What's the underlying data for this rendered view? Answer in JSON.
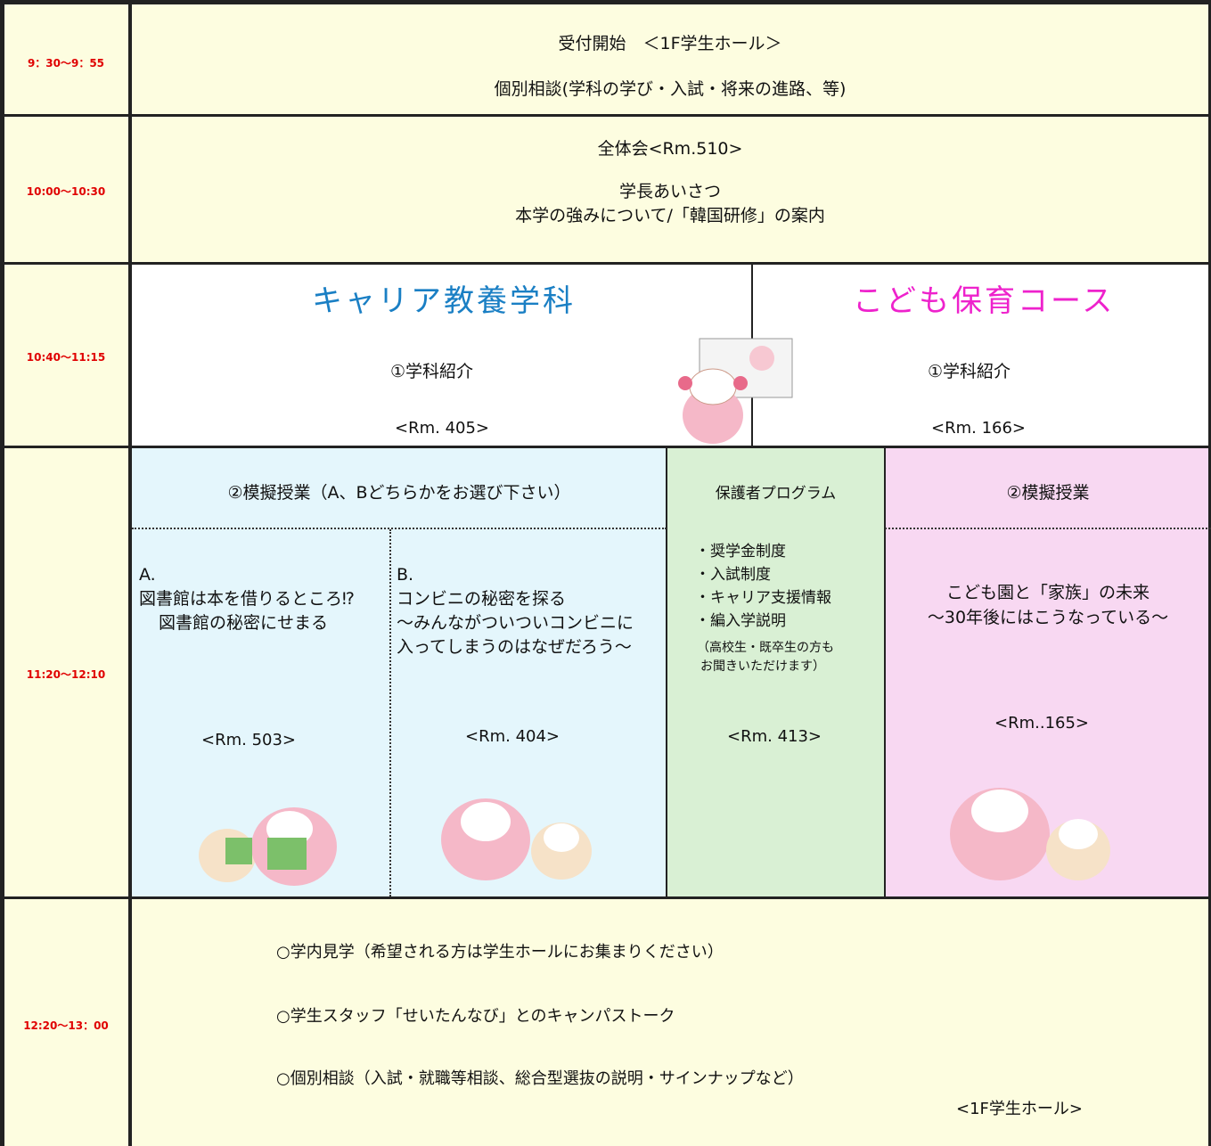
{
  "rows": [
    {
      "time": "9：30〜9：55",
      "lines": [
        "受付開始　＜1F学生ホール＞",
        "個別相談(学科の学び・入試・将来の進路、等)"
      ]
    },
    {
      "time": "10:00〜10:30",
      "lines": [
        "全体会<Rm.510>",
        "学長あいさつ",
        "本学の強みについて/「韓国研修」の案内"
      ]
    },
    {
      "time": "10:40〜11:15",
      "career": {
        "title": "キャリア教養学科",
        "item": "①学科紹介",
        "room": "<Rm. 405>"
      },
      "kodomo": {
        "title": "こども保育コース",
        "item": "①学科紹介",
        "room": "<Rm. 166>"
      }
    },
    {
      "time": "11:20〜12:10",
      "mock": {
        "header": "②模擬授業（A、Bどちらかをお選び下さい）",
        "a": {
          "label": "A.",
          "lines": [
            "図書館は本を借りるところ⁉",
            "図書館の秘密にせまる"
          ],
          "room": "<Rm. 503>"
        },
        "b": {
          "label": "B.",
          "lines": [
            "コンビニの秘密を探る",
            "〜みんながついついコンビニに",
            "入ってしまうのはなぜだろう〜"
          ],
          "room": "<Rm. 404>"
        }
      },
      "parents": {
        "header": "保護者プログラム",
        "items": [
          "・奨学金制度",
          "・入試制度",
          "・キャリア支援情報",
          "・編入学説明"
        ],
        "note": [
          "（高校生・既卒生の方も",
          "お聞きいただけます）"
        ],
        "room": "<Rm. 413>"
      },
      "kodomo_mock": {
        "header": "②模擬授業",
        "lines": [
          "こども園と「家族」の未来",
          "〜30年後にはこうなっている〜"
        ],
        "room": "<Rm..165>"
      }
    },
    {
      "time": "12:20〜13：00",
      "items": [
        "○学内見学（希望される方は学生ホールにお集まりください）",
        "○学生スタッフ「せいたんなび」とのキャンパストーク",
        "○個別相談（入試・就職等相談、総合型選抜の説明・サインナップなど）"
      ],
      "place": "<1F学生ホール>"
    }
  ]
}
